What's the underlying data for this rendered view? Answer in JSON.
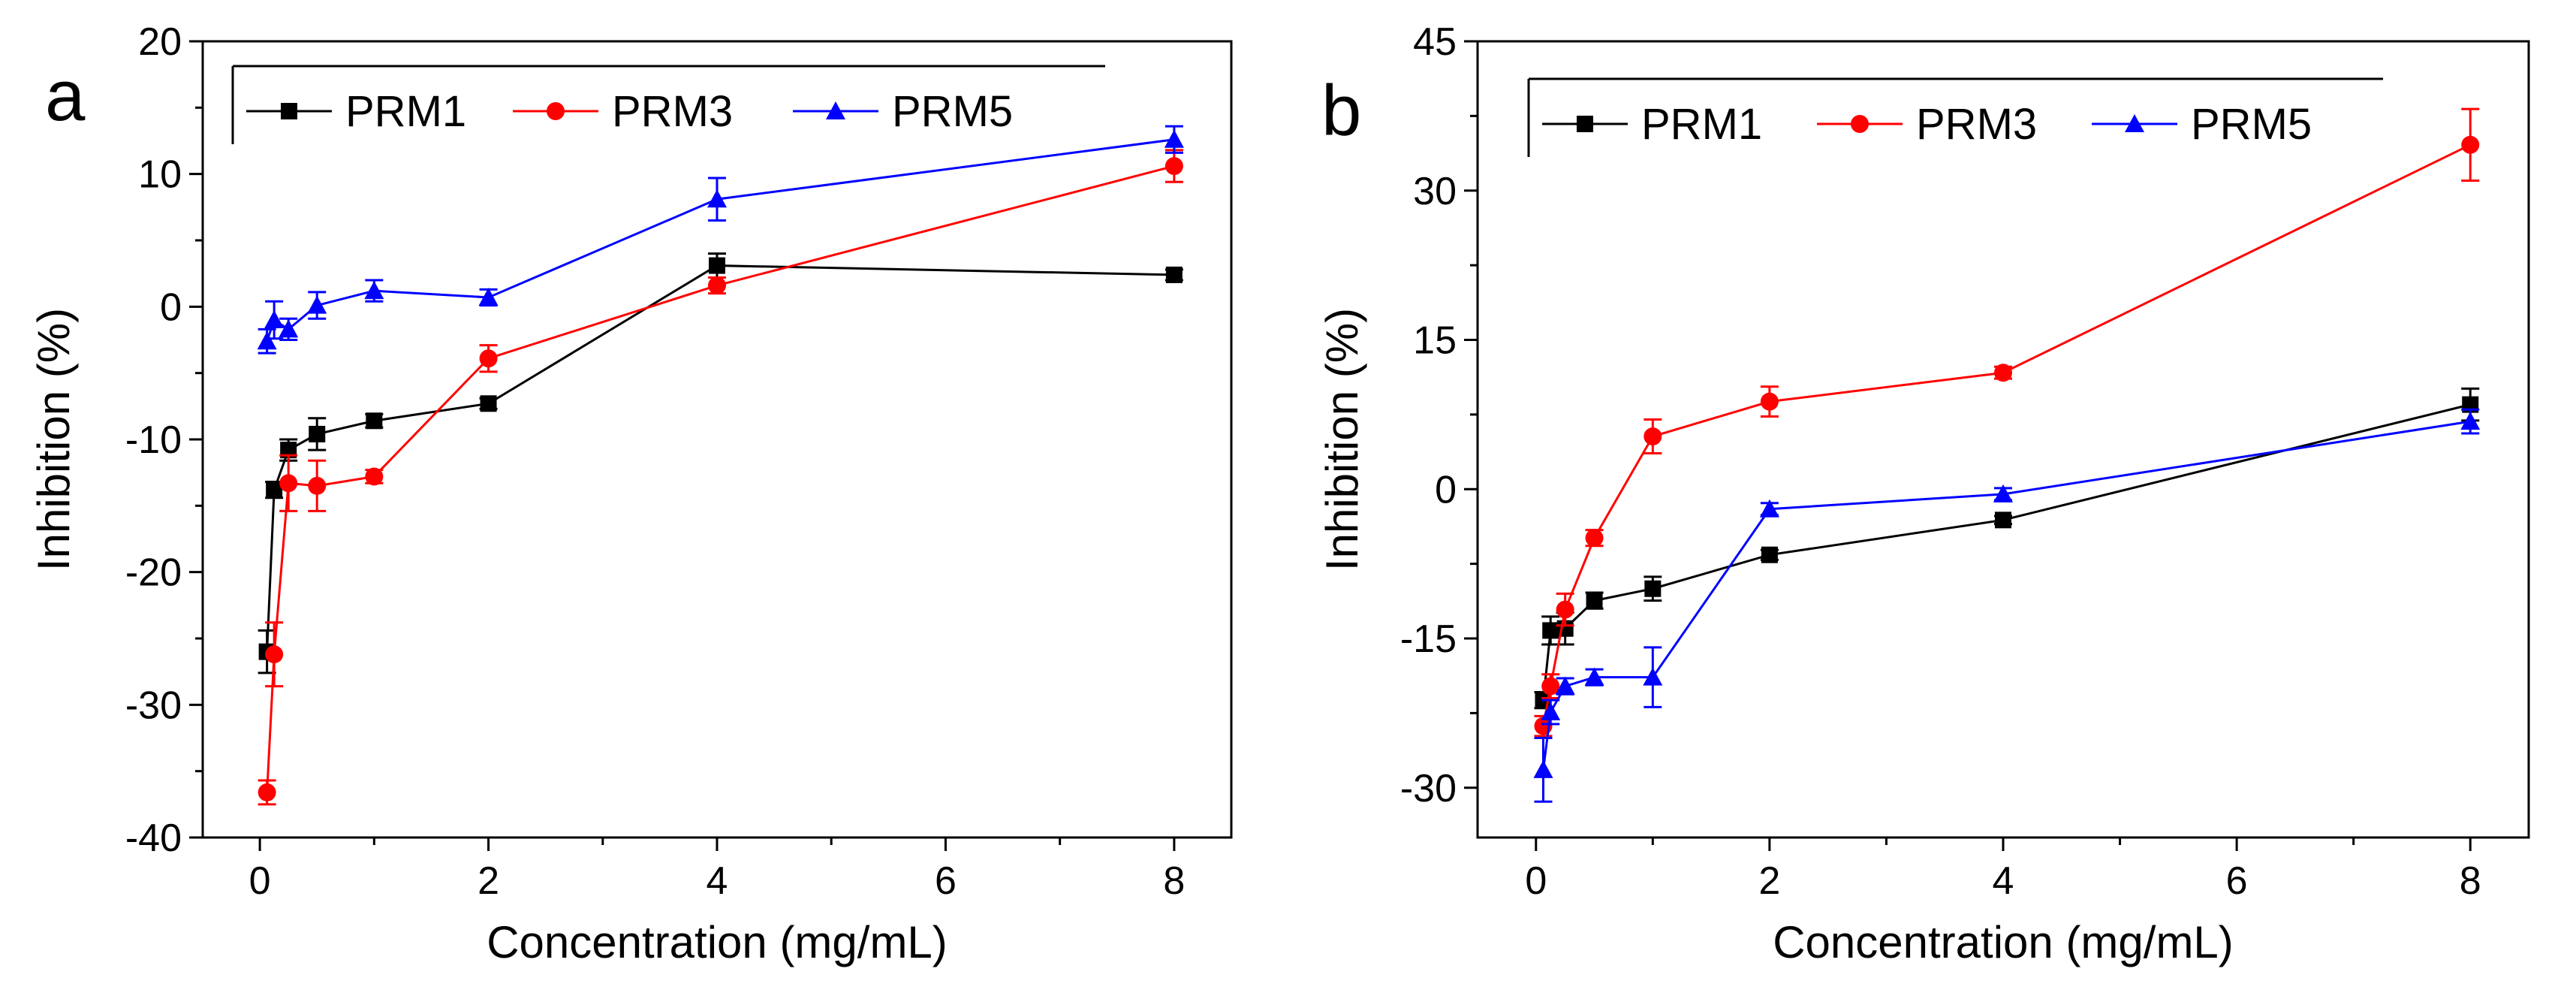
{
  "chart_data": [
    {
      "panel_label": "a",
      "type": "line",
      "xlabel": "Concentration (mg/mL)",
      "ylabel": "Inhibition (%)",
      "xlim": [
        -0.5,
        8.5
      ],
      "ylim": [
        -40,
        20
      ],
      "xticks": [
        0,
        2,
        4,
        6,
        8
      ],
      "yticks": [
        -40,
        -30,
        -20,
        -10,
        0,
        10,
        20
      ],
      "grid": false,
      "legend": "top",
      "series": [
        {
          "name": "PRM1",
          "color": "#000000",
          "marker": "square",
          "x": [
            0.0625,
            0.125,
            0.25,
            0.5,
            1,
            2,
            4,
            8
          ],
          "y": [
            -26.0,
            -13.8,
            -10.8,
            -9.6,
            -8.6,
            -7.3,
            3.1,
            2.4
          ],
          "err": [
            1.6,
            0.6,
            0.8,
            1.2,
            0.5,
            0.4,
            0.9,
            0.4
          ]
        },
        {
          "name": "PRM3",
          "color": "#ff0000",
          "marker": "circle",
          "x": [
            0.0625,
            0.125,
            0.25,
            0.5,
            1,
            2,
            4,
            8
          ],
          "y": [
            -36.6,
            -26.2,
            -13.3,
            -13.5,
            -12.8,
            -3.9,
            1.6,
            10.6
          ],
          "err": [
            0.9,
            2.4,
            2.1,
            1.9,
            0.5,
            1.0,
            0.6,
            1.2
          ]
        },
        {
          "name": "PRM5",
          "color": "#0000ff",
          "marker": "triangle",
          "x": [
            0.0625,
            0.125,
            0.25,
            0.5,
            1,
            2,
            4,
            8
          ],
          "y": [
            -2.6,
            -1.0,
            -1.7,
            0.1,
            1.2,
            0.7,
            8.1,
            12.6
          ],
          "err": [
            0.9,
            1.4,
            0.8,
            1.0,
            0.8,
            0.6,
            1.6,
            1.0
          ]
        }
      ]
    },
    {
      "panel_label": "b",
      "type": "line",
      "xlabel": "Concentration (mg/mL)",
      "ylabel": "Inhibition (%)",
      "xlim": [
        -0.5,
        8.5
      ],
      "ylim": [
        -35,
        45
      ],
      "xticks": [
        0,
        2,
        4,
        6,
        8
      ],
      "yticks": [
        -30,
        -15,
        0,
        15,
        30,
        45
      ],
      "grid": false,
      "legend": "top",
      "series": [
        {
          "name": "PRM1",
          "color": "#000000",
          "marker": "square",
          "x": [
            0.0625,
            0.125,
            0.25,
            0.5,
            1,
            2,
            4,
            8
          ],
          "y": [
            -21.2,
            -14.2,
            -14.0,
            -11.2,
            -10.0,
            -6.6,
            -3.1,
            8.5
          ],
          "err": [
            0.8,
            1.4,
            1.6,
            0.8,
            1.2,
            0.5,
            0.4,
            1.6
          ]
        },
        {
          "name": "PRM3",
          "color": "#ff0000",
          "marker": "circle",
          "x": [
            0.0625,
            0.125,
            0.25,
            0.5,
            1,
            2,
            4,
            8
          ],
          "y": [
            -23.8,
            -19.8,
            -12.1,
            -4.9,
            5.3,
            8.8,
            11.7,
            34.6
          ],
          "err": [
            1.0,
            1.2,
            1.6,
            0.8,
            1.7,
            1.5,
            0.6,
            3.6
          ]
        },
        {
          "name": "PRM5",
          "color": "#0000ff",
          "marker": "triangle",
          "x": [
            0.0625,
            0.125,
            0.25,
            0.5,
            1,
            2,
            4,
            8
          ],
          "y": [
            -28.2,
            -22.4,
            -19.8,
            -18.9,
            -18.9,
            -2.0,
            -0.5,
            6.8
          ],
          "err": [
            3.2,
            1.2,
            0.8,
            0.8,
            3.0,
            0.6,
            0.6,
            1.2
          ]
        }
      ]
    }
  ]
}
